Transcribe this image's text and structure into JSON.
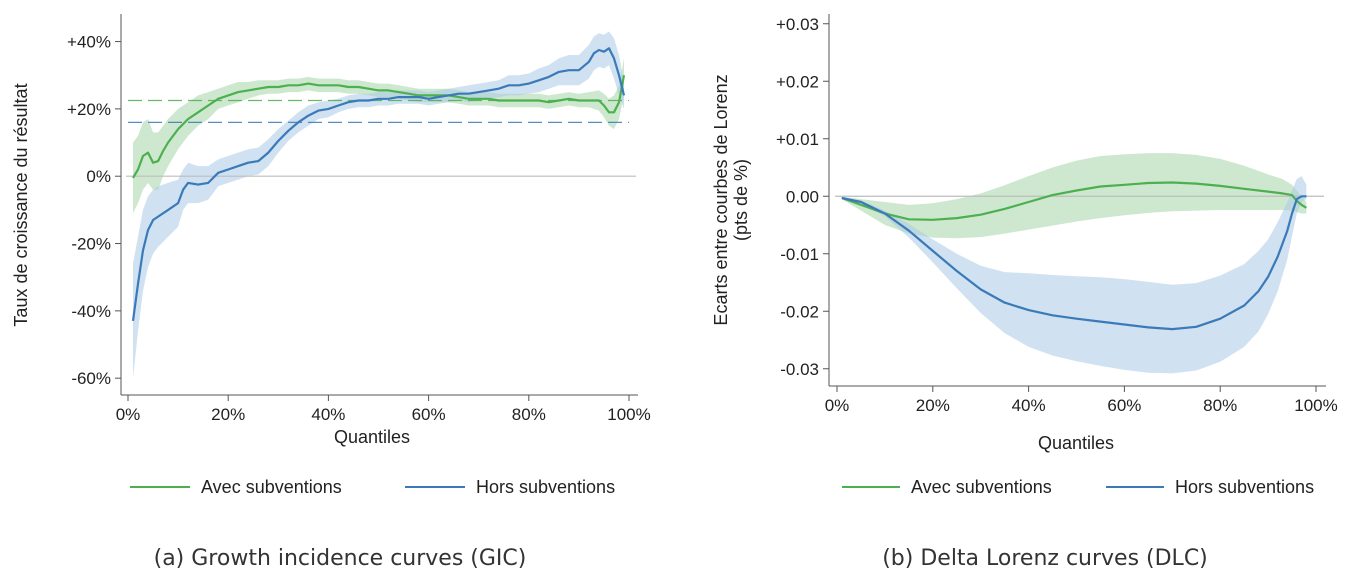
{
  "chart_data": [
    {
      "type": "line",
      "caption": "(a) Growth incidence curves (GIC)",
      "title": "",
      "xlabel": "Quantiles",
      "ylabel": "Taux de croissance du résultat",
      "xlim": [
        0,
        100
      ],
      "ylim": [
        -65,
        47
      ],
      "x_ticks": [
        0,
        20,
        40,
        60,
        80,
        100
      ],
      "x_tick_labels": [
        "0%",
        "20%",
        "40%",
        "60%",
        "80%",
        "100%"
      ],
      "y_ticks": [
        40,
        20,
        0,
        -20,
        -40,
        -60
      ],
      "y_tick_labels": [
        "+40%",
        "+20%",
        "0%",
        "-20%",
        "-40%",
        "-60%"
      ],
      "reference_line": 0,
      "grid": false,
      "legend_position": "bottom",
      "series": [
        {
          "name": "Avec subventions",
          "color": "#4caf50",
          "band_color": "#a5d6a7",
          "x": [
            1,
            2,
            3,
            4,
            5,
            6,
            7,
            8,
            10,
            12,
            14,
            16,
            18,
            20,
            22,
            24,
            26,
            28,
            30,
            32,
            34,
            36,
            38,
            40,
            42,
            44,
            46,
            48,
            50,
            52,
            54,
            56,
            58,
            60,
            62,
            64,
            66,
            68,
            70,
            72,
            74,
            76,
            78,
            80,
            82,
            84,
            86,
            88,
            90,
            92,
            94,
            95,
            96,
            97,
            98,
            99
          ],
          "y": [
            -0.5,
            2,
            6,
            7,
            4,
            4.5,
            7.5,
            10,
            14,
            17,
            19,
            21,
            23,
            24,
            25,
            25.5,
            26,
            26.5,
            26.5,
            27,
            27,
            27.5,
            27,
            27,
            27,
            26.5,
            26.5,
            26,
            25.5,
            25.5,
            25,
            24.5,
            24,
            24,
            24,
            24,
            23.5,
            23,
            23,
            23,
            22.5,
            22.5,
            22.5,
            22.5,
            22.5,
            22,
            22.5,
            23,
            22.5,
            22.5,
            22.5,
            21,
            19,
            19,
            22,
            30
          ],
          "lower": [
            -11,
            -8,
            -4,
            -2,
            -4,
            -4,
            0,
            3,
            8,
            12,
            15,
            17,
            20,
            21,
            22,
            23,
            24,
            24.5,
            24.5,
            25,
            25,
            25.5,
            25,
            25,
            25,
            24.5,
            24.5,
            24,
            23.5,
            23.5,
            23,
            22.5,
            22,
            22,
            22,
            22,
            21.5,
            21,
            21,
            21,
            20.5,
            20.5,
            20.5,
            20.5,
            20.5,
            20,
            20.5,
            21,
            20.5,
            20.5,
            19.5,
            17.5,
            15,
            14,
            17,
            24
          ],
          "upper": [
            10,
            12,
            16,
            17,
            13,
            13,
            15,
            17,
            20,
            22,
            24,
            25,
            26,
            27,
            28,
            28,
            28.5,
            28.5,
            28.5,
            29,
            29,
            29.5,
            29,
            29,
            29,
            28.5,
            28.5,
            28,
            27.5,
            27.5,
            27,
            26.5,
            26,
            26,
            26,
            26,
            25.5,
            25,
            25,
            25,
            24.5,
            24.5,
            24.5,
            24.5,
            24.5,
            24,
            24.5,
            25,
            24.5,
            25,
            25.5,
            24.5,
            23,
            24,
            27,
            35
          ],
          "mean_line": 22.5
        },
        {
          "name": "Hors subventions",
          "color": "#3a7ab8",
          "band_color": "#a9c8e6",
          "x": [
            1,
            2,
            3,
            4,
            5,
            6,
            8,
            10,
            11,
            12,
            14,
            16,
            18,
            20,
            22,
            24,
            26,
            28,
            30,
            32,
            34,
            36,
            38,
            40,
            42,
            44,
            46,
            48,
            50,
            52,
            54,
            56,
            58,
            60,
            62,
            64,
            66,
            68,
            70,
            72,
            74,
            76,
            78,
            80,
            82,
            84,
            86,
            88,
            90,
            92,
            93,
            94,
            95,
            96,
            97,
            98,
            99
          ],
          "y": [
            -43,
            -32,
            -22,
            -16,
            -13,
            -12,
            -10,
            -8,
            -4,
            -2,
            -2.5,
            -2,
            1,
            2,
            3,
            4,
            4.5,
            7,
            10.5,
            13.5,
            16,
            18,
            19.5,
            20,
            21,
            22,
            22.5,
            22.5,
            23,
            23,
            23.5,
            23.5,
            23.5,
            23,
            23.5,
            24,
            24.5,
            24.5,
            25,
            25.5,
            26,
            27,
            27,
            27.5,
            28.5,
            29.5,
            31,
            31.5,
            31.5,
            34,
            36.5,
            37.5,
            37,
            38,
            35,
            30,
            24
          ],
          "lower": [
            -60,
            -46,
            -34,
            -27,
            -23,
            -21,
            -18,
            -15,
            -10,
            -8,
            -8,
            -7,
            -3,
            -2,
            -1,
            0,
            0.5,
            3,
            7,
            10.5,
            13,
            15,
            17,
            17.5,
            19,
            20,
            20.5,
            20.5,
            21,
            21,
            21.5,
            21.5,
            21.5,
            21,
            21.5,
            22,
            22.5,
            22,
            22.5,
            23,
            23.5,
            24,
            24,
            24.5,
            25,
            26,
            27,
            27,
            27,
            29,
            31.5,
            32.5,
            32,
            33,
            29,
            24,
            20
          ],
          "upper": [
            -26,
            -18,
            -10,
            -6,
            -4,
            -3,
            -2,
            -1,
            2,
            4,
            3,
            3,
            5,
            6,
            7,
            8,
            8.5,
            11,
            14,
            16.5,
            19,
            21,
            22,
            22.5,
            23,
            24,
            24.5,
            24.5,
            25,
            25,
            25.5,
            25.5,
            25.5,
            25,
            25.5,
            26,
            26.5,
            27,
            27.5,
            28,
            28.5,
            30,
            30,
            30.5,
            32,
            33,
            35,
            36,
            36,
            39,
            41.5,
            42.5,
            42,
            43,
            41,
            36,
            28
          ],
          "mean_line": 16
        }
      ]
    },
    {
      "type": "line",
      "caption": "(b) Delta Lorenz curves (DLC)",
      "title": "",
      "xlabel": "Quantiles",
      "ylabel": "Ecarts entre courbes de Lorenz",
      "ylabel2": "(pts de %)",
      "xlim": [
        0,
        100
      ],
      "ylim": [
        -0.033,
        0.031
      ],
      "x_ticks": [
        0,
        20,
        40,
        60,
        80,
        100
      ],
      "x_tick_labels": [
        "0%",
        "20%",
        "40%",
        "60%",
        "80%",
        "100%"
      ],
      "y_ticks": [
        0.03,
        0.02,
        0.01,
        0,
        -0.01,
        -0.02,
        -0.03
      ],
      "y_tick_labels": [
        "+0.03",
        "+0.02",
        "+0.01",
        "0.00",
        "-0.01",
        "-0.02",
        "-0.03"
      ],
      "reference_line": 0,
      "grid": false,
      "legend_position": "bottom",
      "series": [
        {
          "name": "Avec subventions",
          "color": "#4caf50",
          "band_color": "#a5d6a7",
          "x": [
            1,
            5,
            10,
            15,
            20,
            25,
            30,
            35,
            40,
            45,
            50,
            55,
            60,
            65,
            70,
            75,
            80,
            85,
            90,
            93,
            95,
            96,
            97,
            98
          ],
          "y": [
            -0.0003,
            -0.0015,
            -0.003,
            -0.004,
            -0.0041,
            -0.0038,
            -0.0032,
            -0.0022,
            -0.001,
            0.0002,
            0.001,
            0.0017,
            0.002,
            0.0023,
            0.0024,
            0.0022,
            0.0018,
            0.0013,
            0.0008,
            0.0005,
            0.0002,
            -0.0008,
            -0.0015,
            -0.002
          ],
          "lower": [
            -0.0005,
            -0.0025,
            -0.005,
            -0.0065,
            -0.0072,
            -0.0073,
            -0.0071,
            -0.0065,
            -0.0058,
            -0.0051,
            -0.0044,
            -0.0038,
            -0.0033,
            -0.0029,
            -0.0026,
            -0.0025,
            -0.0024,
            -0.0024,
            -0.0024,
            -0.0024,
            -0.0025,
            -0.0028,
            -0.003,
            -0.003
          ],
          "upper": [
            -0.0001,
            -0.0005,
            -0.001,
            -0.0015,
            -0.0012,
            -0.0005,
            0.0005,
            0.0019,
            0.0035,
            0.005,
            0.0062,
            0.007,
            0.0073,
            0.0075,
            0.0075,
            0.0072,
            0.0065,
            0.0053,
            0.0038,
            0.003,
            0.002,
            0.001,
            0,
            -0.001
          ]
        },
        {
          "name": "Hors subventions",
          "color": "#3a7ab8",
          "band_color": "#a9c8e6",
          "x": [
            1,
            5,
            10,
            15,
            20,
            25,
            30,
            35,
            40,
            45,
            50,
            55,
            60,
            65,
            70,
            75,
            80,
            85,
            88,
            90,
            92,
            94,
            95,
            96,
            97,
            98
          ],
          "y": [
            -0.0003,
            -0.001,
            -0.003,
            -0.006,
            -0.0095,
            -0.013,
            -0.0162,
            -0.0185,
            -0.0198,
            -0.0207,
            -0.0213,
            -0.0218,
            -0.0223,
            -0.0228,
            -0.0231,
            -0.0227,
            -0.0213,
            -0.019,
            -0.0165,
            -0.014,
            -0.0105,
            -0.006,
            -0.003,
            -0.0005,
            0,
            0
          ],
          "lower": [
            -0.0005,
            -0.0013,
            -0.0035,
            -0.0072,
            -0.0115,
            -0.016,
            -0.0203,
            -0.0238,
            -0.0262,
            -0.0277,
            -0.0287,
            -0.0295,
            -0.0302,
            -0.0307,
            -0.0308,
            -0.0303,
            -0.0288,
            -0.0262,
            -0.0235,
            -0.0205,
            -0.0165,
            -0.011,
            -0.007,
            -0.003,
            -0.001,
            -0.0005
          ],
          "upper": [
            -0.0001,
            -0.0007,
            -0.0025,
            -0.0048,
            -0.0075,
            -0.01,
            -0.0121,
            -0.0132,
            -0.0134,
            -0.0137,
            -0.0139,
            -0.0141,
            -0.0144,
            -0.0149,
            -0.0154,
            -0.0151,
            -0.0138,
            -0.0118,
            -0.0095,
            -0.0075,
            -0.0045,
            -0.001,
            0.001,
            0.003,
            0.0035,
            0.002
          ]
        }
      ]
    }
  ]
}
